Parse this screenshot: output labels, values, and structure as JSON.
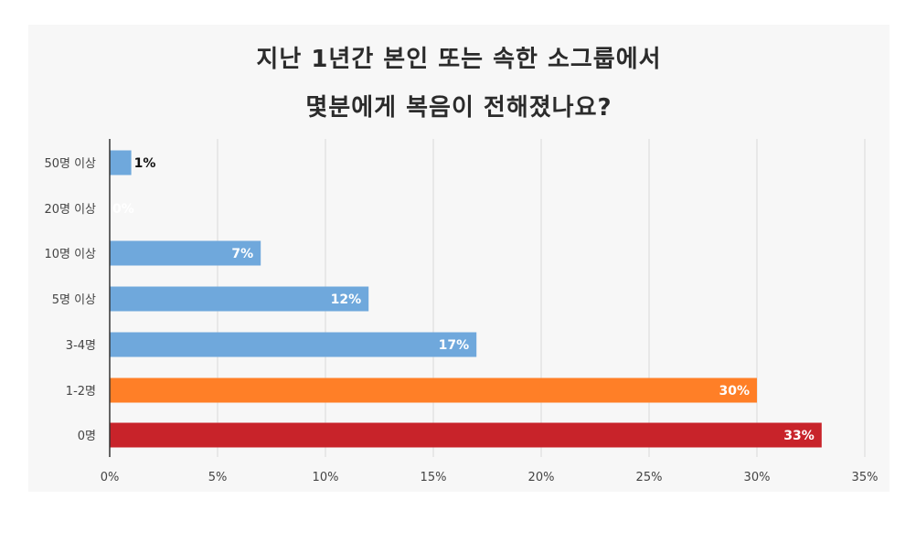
{
  "chart_data": {
    "type": "bar",
    "orientation": "horizontal",
    "title_lines": [
      "지난 1년간 본인 또는 속한 소그룹에서",
      "몇분에게 복음이 전해졌나요?"
    ],
    "categories": [
      "50명 이상",
      "20명 이상",
      "10명 이상",
      "5명 이상",
      "3-4명",
      "1-2명",
      "0명"
    ],
    "values": [
      1,
      0,
      7,
      12,
      17,
      30,
      33
    ],
    "data_labels": [
      "1%",
      "0%",
      "7%",
      "12%",
      "17%",
      "30%",
      "33%"
    ],
    "bar_colors": [
      "#6fa8dc",
      "#6fa8dc",
      "#6fa8dc",
      "#6fa8dc",
      "#6fa8dc",
      "#ff7f27",
      "#c8232a"
    ],
    "label_colors": [
      "#111111",
      "#ffffff",
      "#ffffff",
      "#ffffff",
      "#ffffff",
      "#ffffff",
      "#ffffff"
    ],
    "x_ticks": [
      0,
      5,
      10,
      15,
      20,
      25,
      30,
      35
    ],
    "x_tick_labels": [
      "0%",
      "5%",
      "10%",
      "15%",
      "20%",
      "25%",
      "30%",
      "35%"
    ],
    "xlim": [
      0,
      35
    ],
    "grid": "vertical",
    "legend": "none",
    "xlabel": "",
    "ylabel": ""
  }
}
